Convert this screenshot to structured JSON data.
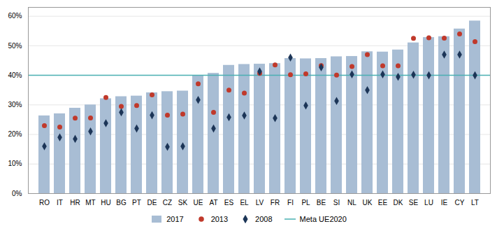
{
  "chart_data": {
    "type": "bar",
    "categories": [
      "RO",
      "IT",
      "HR",
      "MT",
      "HU",
      "BG",
      "PT",
      "DE",
      "CZ",
      "SK",
      "UE",
      "AT",
      "ES",
      "EL",
      "LV",
      "FR",
      "FI",
      "PL",
      "BE",
      "SI",
      "NL",
      "UK",
      "EE",
      "DK",
      "SE",
      "LU",
      "IE",
      "CY",
      "LT"
    ],
    "series": [
      {
        "name": "2017",
        "type": "bar",
        "color": "#a8bdd4",
        "values": [
          26.3,
          27.0,
          28.9,
          30.0,
          32.1,
          32.8,
          33.0,
          34.1,
          34.5,
          34.7,
          39.9,
          40.7,
          43.4,
          43.7,
          43.8,
          44.0,
          45.7,
          45.6,
          45.7,
          46.3,
          46.4,
          48.0,
          47.9,
          48.6,
          51.0,
          52.8,
          53.1,
          55.7,
          58.4
        ]
      },
      {
        "name": "2013",
        "type": "scatter",
        "marker": "circle",
        "color": "#c0392b",
        "values": [
          23.0,
          22.5,
          25.5,
          25.6,
          32.5,
          29.5,
          29.8,
          33.4,
          26.5,
          26.9,
          37.1,
          27.5,
          35.0,
          34.0,
          40.7,
          43.5,
          40.2,
          40.5,
          43.3,
          40.1,
          43.0,
          47.0,
          43.2,
          43.2,
          52.5,
          52.7,
          52.6,
          54.0,
          51.4
        ]
      },
      {
        "name": "2008",
        "type": "scatter",
        "marker": "diamond",
        "color": "#1c3557",
        "values": [
          16.0,
          19.0,
          18.5,
          21.0,
          23.8,
          27.5,
          22.0,
          26.5,
          15.8,
          16.0,
          31.7,
          22.0,
          25.8,
          26.4,
          41.3,
          25.5,
          46.0,
          29.8,
          42.7,
          31.3,
          40.3,
          35.0,
          40.3,
          39.5,
          40.2,
          40.0,
          47.0,
          47.0,
          40.0
        ]
      }
    ],
    "reference_line": {
      "name": "Meta UE2020",
      "value": 40.0,
      "color": "#4ab0b2"
    },
    "ylim": [
      0,
      63
    ],
    "yticks": [
      {
        "value": 0,
        "label": "0%"
      },
      {
        "value": 10,
        "label": "10%"
      },
      {
        "value": 20,
        "label": "20%"
      },
      {
        "value": 30,
        "label": "30%"
      },
      {
        "value": 40,
        "label": "40%"
      },
      {
        "value": 50,
        "label": "50%"
      },
      {
        "value": 60,
        "label": "60%"
      }
    ],
    "grid": true,
    "legend": "bottom"
  }
}
